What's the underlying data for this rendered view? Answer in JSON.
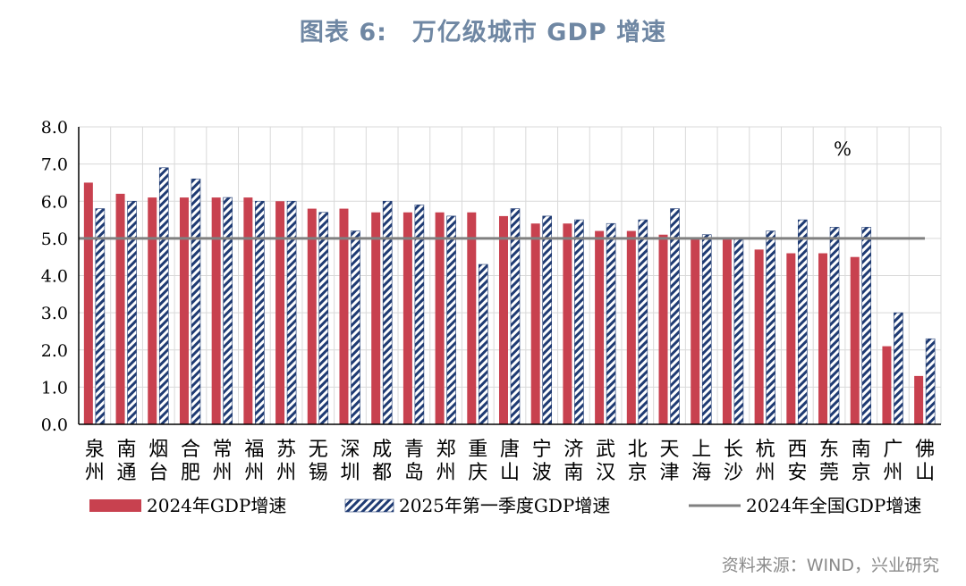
{
  "title": "图表 6:　万亿级城市 GDP 增速",
  "source": "资料来源：WIND，兴业研究",
  "colors": {
    "series_2024": "#c8414f",
    "series_2025_stripe": "#1f3b73",
    "national_line": "#808080"
  },
  "chart_data": {
    "type": "bar",
    "title": "图表 6:　万亿级城市 GDP 增速",
    "unit_label": "%",
    "ylim": [
      0,
      8
    ],
    "yticks": [
      "0.0",
      "1.0",
      "2.0",
      "3.0",
      "4.0",
      "5.0",
      "6.0",
      "7.0",
      "8.0"
    ],
    "grid": true,
    "legend_position": "bottom",
    "categories": [
      [
        "泉",
        "州"
      ],
      [
        "南",
        "通"
      ],
      [
        "烟",
        "台"
      ],
      [
        "合",
        "肥"
      ],
      [
        "常",
        "州"
      ],
      [
        "福",
        "州"
      ],
      [
        "苏",
        "州"
      ],
      [
        "无",
        "锡"
      ],
      [
        "深",
        "圳"
      ],
      [
        "成",
        "都"
      ],
      [
        "青",
        "岛"
      ],
      [
        "郑",
        "州"
      ],
      [
        "重",
        "庆"
      ],
      [
        "唐",
        "山"
      ],
      [
        "宁",
        "波"
      ],
      [
        "济",
        "南"
      ],
      [
        "武",
        "汉"
      ],
      [
        "北",
        "京"
      ],
      [
        "天",
        "津"
      ],
      [
        "上",
        "海"
      ],
      [
        "长",
        "沙"
      ],
      [
        "杭",
        "州"
      ],
      [
        "西",
        "安"
      ],
      [
        "东",
        "莞"
      ],
      [
        "南",
        "京"
      ],
      [
        "广",
        "州"
      ],
      [
        "佛",
        "山"
      ]
    ],
    "series": [
      {
        "name": "2024年GDP增速",
        "values": [
          6.5,
          6.2,
          6.1,
          6.1,
          6.1,
          6.1,
          6.0,
          5.8,
          5.8,
          5.7,
          5.7,
          5.7,
          5.7,
          5.6,
          5.4,
          5.4,
          5.2,
          5.2,
          5.1,
          5.0,
          5.0,
          4.7,
          4.6,
          4.6,
          4.5,
          2.1,
          1.3
        ]
      },
      {
        "name": "2025年第一季度GDP增速",
        "values": [
          5.8,
          6.0,
          6.9,
          6.6,
          6.1,
          6.0,
          6.0,
          5.7,
          5.2,
          6.0,
          5.9,
          5.6,
          4.3,
          5.8,
          5.6,
          5.5,
          5.4,
          5.5,
          5.8,
          5.1,
          5.0,
          5.2,
          5.5,
          5.3,
          5.3,
          3.0,
          2.3
        ]
      }
    ],
    "reference_line": {
      "name": "2024年全国GDP增速",
      "value": 5.0
    }
  }
}
